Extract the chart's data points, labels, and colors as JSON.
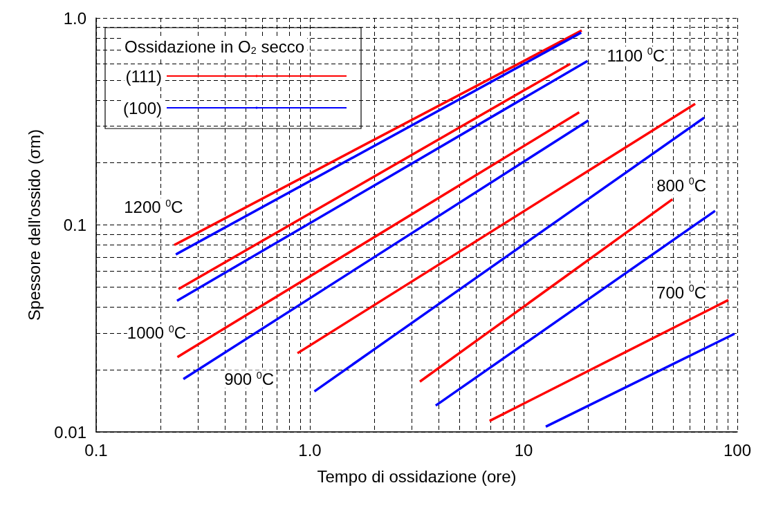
{
  "chart_data": {
    "type": "line",
    "xlabel": "Tempo di ossidazione (ore)",
    "ylabel": "Spessore dell'ossido (σm)",
    "legend_title": "Ossidazione in O$_{2}$ secco",
    "legend": "top left",
    "log": "xy",
    "grid": true,
    "marker": "none",
    "line_style": "solid",
    "xlim": [
      0.1,
      100
    ],
    "ylim": [
      0.01,
      1.0
    ],
    "xticks": [
      0.1,
      {
        "value": 0.2,
        "label": null
      },
      {
        "value": 0.3,
        "label": null
      },
      {
        "value": 0.4,
        "label": null
      },
      {
        "value": 0.5,
        "label": null
      },
      {
        "value": 0.6,
        "label": null
      },
      {
        "value": 0.7,
        "label": null
      },
      {
        "value": 0.8,
        "label": null
      },
      {
        "value": 0.9,
        "label": null
      },
      {
        "value": 1,
        "label": "1.0"
      },
      {
        "value": 2,
        "label": null
      },
      {
        "value": 3,
        "label": null
      },
      {
        "value": 4,
        "label": null
      },
      {
        "value": 5,
        "label": null
      },
      {
        "value": 6,
        "label": null
      },
      {
        "value": 7,
        "label": null
      },
      {
        "value": 8,
        "label": null
      },
      {
        "value": 9,
        "label": null
      },
      10,
      {
        "value": 20,
        "label": null
      },
      {
        "value": 30,
        "label": null
      },
      {
        "value": 40,
        "label": null
      },
      {
        "value": 50,
        "label": null
      },
      {
        "value": 60,
        "label": null
      },
      {
        "value": 70,
        "label": null
      },
      {
        "value": 80,
        "label": null
      },
      {
        "value": 90,
        "label": null
      },
      100
    ],
    "yticks": [
      0.01,
      {
        "value": 0.02,
        "label": null
      },
      {
        "value": 0.03,
        "label": null
      },
      {
        "value": 0.04,
        "label": null
      },
      {
        "value": 0.05,
        "label": null
      },
      {
        "value": 0.06,
        "label": null
      },
      {
        "value": 0.07,
        "label": null
      },
      {
        "value": 0.08,
        "label": null
      },
      {
        "value": 0.09,
        "label": null
      },
      0.1,
      {
        "value": 0.2,
        "label": null
      },
      {
        "value": 0.3,
        "label": null
      },
      {
        "value": 0.4,
        "label": null
      },
      {
        "value": 0.5,
        "label": null
      },
      {
        "value": 0.6,
        "label": null
      },
      {
        "value": 0.7,
        "label": null
      },
      {
        "value": 0.8,
        "label": null
      },
      {
        "value": 0.9,
        "label": null
      },
      {
        "value": 1,
        "label": "1.0"
      }
    ],
    "series": [
      {
        "name": "(111)",
        "color": "#ff0000",
        "x": [
          0.232,
          18.7
        ],
        "values": [
          0.08,
          0.87
        ]
      },
      {
        "name": "(100)",
        "color": "#0000ff",
        "x": [
          0.236,
          18.6
        ],
        "values": [
          0.072,
          0.85
        ]
      },
      {
        "color": "#ff0000",
        "x": [
          0.243,
          16.5
        ],
        "values": [
          0.049,
          0.6
        ]
      },
      {
        "color": "#0000ff",
        "x": [
          0.239,
          19.9
        ],
        "values": [
          0.043,
          0.62
        ]
      },
      {
        "color": "#ff0000",
        "x": [
          0.24,
          18.2
        ],
        "values": [
          0.023,
          0.35
        ]
      },
      {
        "color": "#0000ff",
        "x": [
          0.256,
          20.1
        ],
        "values": [
          0.018,
          0.32
        ]
      },
      {
        "color": "#ff0000",
        "x": [
          0.875,
          63.5
        ],
        "values": [
          0.024,
          0.385
        ]
      },
      {
        "color": "#0000ff",
        "x": [
          1.05,
          70
        ],
        "values": [
          0.0157,
          0.33
        ]
      },
      {
        "color": "#ff0000",
        "x": [
          3.27,
          49.7
        ],
        "values": [
          0.0175,
          0.133
        ]
      },
      {
        "color": "#0000ff",
        "x": [
          3.88,
          78.7
        ],
        "values": [
          0.0134,
          0.117
        ]
      },
      {
        "color": "#ff0000",
        "x": [
          6.93,
          90.8
        ],
        "values": [
          0.0113,
          0.0434
        ]
      },
      {
        "color": "#0000ff",
        "x": [
          12.7,
          97
        ],
        "values": [
          0.0106,
          0.0298
        ]
      }
    ],
    "annotations": [
      "1200 $^{0}$C",
      "1100 $^{0}$C",
      "1000 $^{0}$C",
      "900 $^{0}$C",
      "800 $^{0}$C",
      "700 $^{0}$C"
    ]
  }
}
